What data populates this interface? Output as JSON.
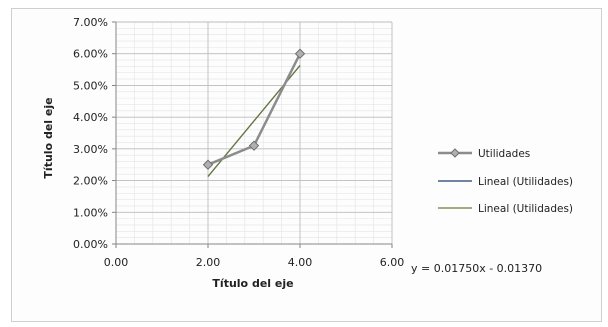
{
  "chart_data": {
    "type": "scatter",
    "title": "",
    "xlabel": "Título del eje",
    "ylabel": "Título del eje",
    "xlim": [
      0,
      6
    ],
    "ylim": [
      0,
      0.07
    ],
    "x_ticks": [
      "0.00",
      "2.00",
      "4.00",
      "6.00"
    ],
    "y_ticks": [
      "0.00%",
      "1.00%",
      "2.00%",
      "3.00%",
      "4.00%",
      "5.00%",
      "6.00%",
      "7.00%"
    ],
    "grid": true,
    "legend_position": "right",
    "series": [
      {
        "name": "Utilidades",
        "x": [
          2,
          3,
          4
        ],
        "y": [
          0.025,
          0.031,
          0.06
        ],
        "color": "#8c8c8c"
      }
    ],
    "trendlines": [
      {
        "name": "Lineal (Utilidades)",
        "slope": 0.0175,
        "intercept": -0.0137,
        "x_range": [
          2,
          4
        ],
        "color": "#1f3c6e"
      },
      {
        "name": "Lineal (Utilidades)",
        "slope": 0.0175,
        "intercept": -0.0137,
        "x_range": [
          2,
          4
        ],
        "color": "#6b7b3a"
      }
    ],
    "equation": "y = 0.01750x - 0.01370"
  }
}
